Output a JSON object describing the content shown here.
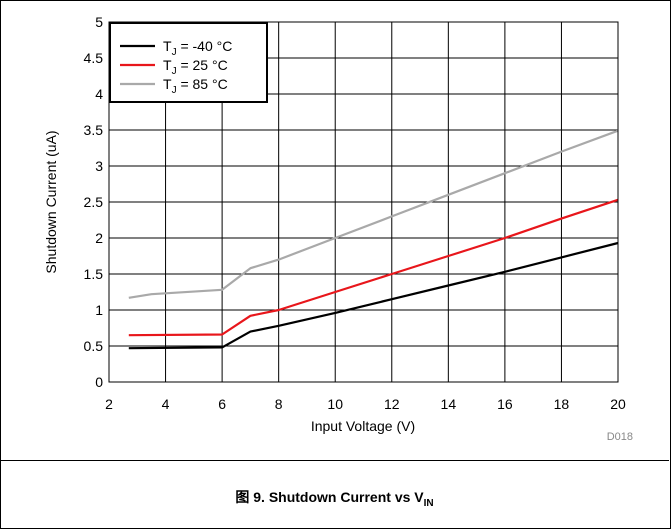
{
  "chart_data": {
    "type": "line",
    "xlabel": "Input Voltage (V)",
    "ylabel": "Shutdown Current (uA)",
    "xlim": [
      2,
      20
    ],
    "ylim": [
      0,
      5
    ],
    "xticks": [
      "2",
      "4",
      "6",
      "8",
      "10",
      "12",
      "14",
      "16",
      "18",
      "20"
    ],
    "yticks": [
      "0",
      "0.5",
      "1",
      "1.5",
      "2",
      "2.5",
      "3",
      "3.5",
      "4",
      "4.5",
      "5"
    ],
    "grid": true,
    "legend_position": "top-left",
    "watermark": "D018",
    "series": [
      {
        "name_main": "T",
        "name_sub": "J",
        "name_rest": " = -40 °C",
        "color": "#000000",
        "points": [
          [
            2.7,
            0.47
          ],
          [
            6,
            0.48
          ],
          [
            7,
            0.7
          ],
          [
            8,
            0.78
          ],
          [
            10,
            0.96
          ],
          [
            12,
            1.15
          ],
          [
            14,
            1.34
          ],
          [
            16,
            1.53
          ],
          [
            18,
            1.73
          ],
          [
            20,
            1.93
          ]
        ]
      },
      {
        "name_main": "T",
        "name_sub": "J",
        "name_rest": " = 25 °C",
        "color": "#e8161b",
        "points": [
          [
            2.7,
            0.65
          ],
          [
            6,
            0.66
          ],
          [
            7,
            0.92
          ],
          [
            8,
            1.0
          ],
          [
            10,
            1.25
          ],
          [
            12,
            1.5
          ],
          [
            14,
            1.75
          ],
          [
            16,
            2.0
          ],
          [
            18,
            2.27
          ],
          [
            20,
            2.53
          ]
        ]
      },
      {
        "name_main": "T",
        "name_sub": "J",
        "name_rest": " = 85 °C",
        "color": "#a9a9a9",
        "points": [
          [
            2.7,
            1.17
          ],
          [
            3.5,
            1.22
          ],
          [
            6,
            1.28
          ],
          [
            7,
            1.58
          ],
          [
            8,
            1.7
          ],
          [
            10,
            2.0
          ],
          [
            12,
            2.3
          ],
          [
            14,
            2.6
          ],
          [
            16,
            2.9
          ],
          [
            18,
            3.2
          ],
          [
            20,
            3.49
          ]
        ]
      }
    ]
  },
  "caption": {
    "prefix": "图 9. Shutdown Current vs V",
    "sub": "IN"
  }
}
